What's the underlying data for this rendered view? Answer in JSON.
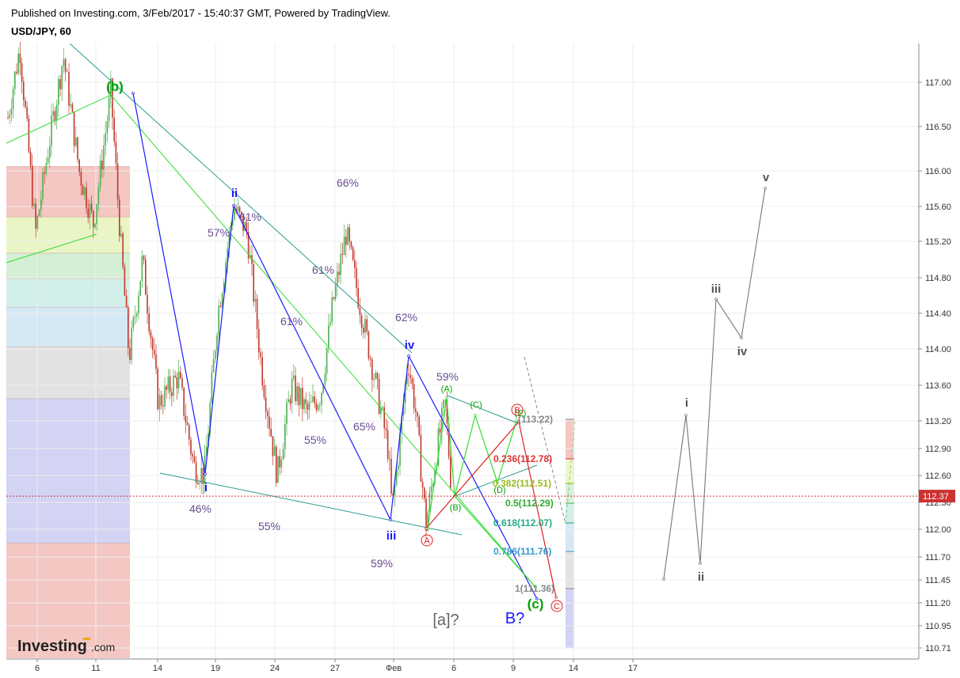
{
  "header": {
    "published": "Published on Investing.com, 3/Feb/2017 - 15:40:37 GMT, Powered by TradingView.",
    "symbol": "USD/JPY, 60"
  },
  "logo": {
    "brand": "Investing",
    "suffix": ".com"
  },
  "colors": {
    "bull": "#4caf50",
    "bear": "#c0392b",
    "wave_blue": "#1a1aff",
    "wave_green": "#00a000",
    "channel_teal": "#2a9d8f",
    "channel_lime": "#33dd33",
    "wave_red": "#dd2222",
    "wave_gray": "#777777",
    "percent_text": "#6a4c93",
    "price_line": "#cc3333"
  },
  "chart_data": {
    "type": "candlestick",
    "title": "USD/JPY, 60",
    "current_price": 112.37,
    "current_price_label": "112.37",
    "y_axis": {
      "ticks": [
        "117.00",
        "116.50",
        "116.00",
        "115.60",
        "115.20",
        "114.80",
        "114.40",
        "114.00",
        "113.60",
        "113.20",
        "112.90",
        "112.60",
        "112.30",
        "112.00",
        "111.70",
        "111.45",
        "111.20",
        "110.95",
        "110.71"
      ]
    },
    "x_axis": {
      "ticks": [
        "6",
        "11",
        "14",
        "19",
        "24",
        "27",
        "Фев",
        "6",
        "9",
        "14",
        "17"
      ]
    },
    "fib_zones": [
      {
        "from": 116.05,
        "to": 115.48,
        "color": "#f4c7c3"
      },
      {
        "from": 115.48,
        "to": 115.07,
        "color": "#eaf5c6"
      },
      {
        "from": 115.07,
        "to": 114.79,
        "color": "#d4efd6"
      },
      {
        "from": 114.79,
        "to": 114.47,
        "color": "#d3efe9"
      },
      {
        "from": 114.47,
        "to": 114.02,
        "color": "#d5e8f3"
      },
      {
        "from": 114.02,
        "to": 113.45,
        "color": "#e2e2e2"
      },
      {
        "from": 113.45,
        "to": 111.85,
        "color": "#d3d3f3"
      },
      {
        "from": 111.85,
        "to": 110.6,
        "color": "#f4c7c3"
      }
    ],
    "fib_retracement": [
      {
        "label": "(113.22)",
        "color": "#888888"
      },
      {
        "label": "0.236(112.78)",
        "color": "#dd3333"
      },
      {
        "label": "0.382(112.51)",
        "color": "#99bb22"
      },
      {
        "label": "0.5(112.29)",
        "color": "#33aa33"
      },
      {
        "label": "0.618(112.07)",
        "color": "#22aa88"
      },
      {
        "label": "0.786(111.76)",
        "color": "#3399cc"
      },
      {
        "label": "1(111.36)",
        "color": "#888888"
      }
    ],
    "wave_labels": [
      {
        "text": "(b)",
        "color": "#00a000"
      },
      {
        "text": "i",
        "color": "#1a1aff"
      },
      {
        "text": "ii",
        "color": "#1a1aff"
      },
      {
        "text": "iii",
        "color": "#1a1aff"
      },
      {
        "text": "iv",
        "color": "#1a1aff"
      },
      {
        "text": "(A)",
        "color": "#00a000"
      },
      {
        "text": "(B)",
        "color": "#00a000"
      },
      {
        "text": "(C)",
        "color": "#00a000"
      },
      {
        "text": "(D)",
        "color": "#00a000"
      },
      {
        "text": "(E)",
        "color": "#00a000"
      },
      {
        "text": "(c)",
        "color": "#00a000"
      },
      {
        "text": "A",
        "color": "#dd2222"
      },
      {
        "text": "B",
        "color": "#dd2222"
      },
      {
        "text": "C",
        "color": "#dd2222"
      },
      {
        "text": "B?",
        "color": "#1a1aff"
      },
      {
        "text": "[a]?",
        "color": "#666666"
      },
      {
        "text": "i",
        "color": "#555555"
      },
      {
        "text": "ii",
        "color": "#555555"
      },
      {
        "text": "iii",
        "color": "#555555"
      },
      {
        "text": "iv",
        "color": "#555555"
      },
      {
        "text": "v",
        "color": "#555555"
      }
    ],
    "percent_labels": [
      "66%",
      "57%",
      "61%",
      "61%",
      "61%",
      "62%",
      "59%",
      "65%",
      "55%",
      "46%",
      "55%",
      "59%"
    ]
  }
}
